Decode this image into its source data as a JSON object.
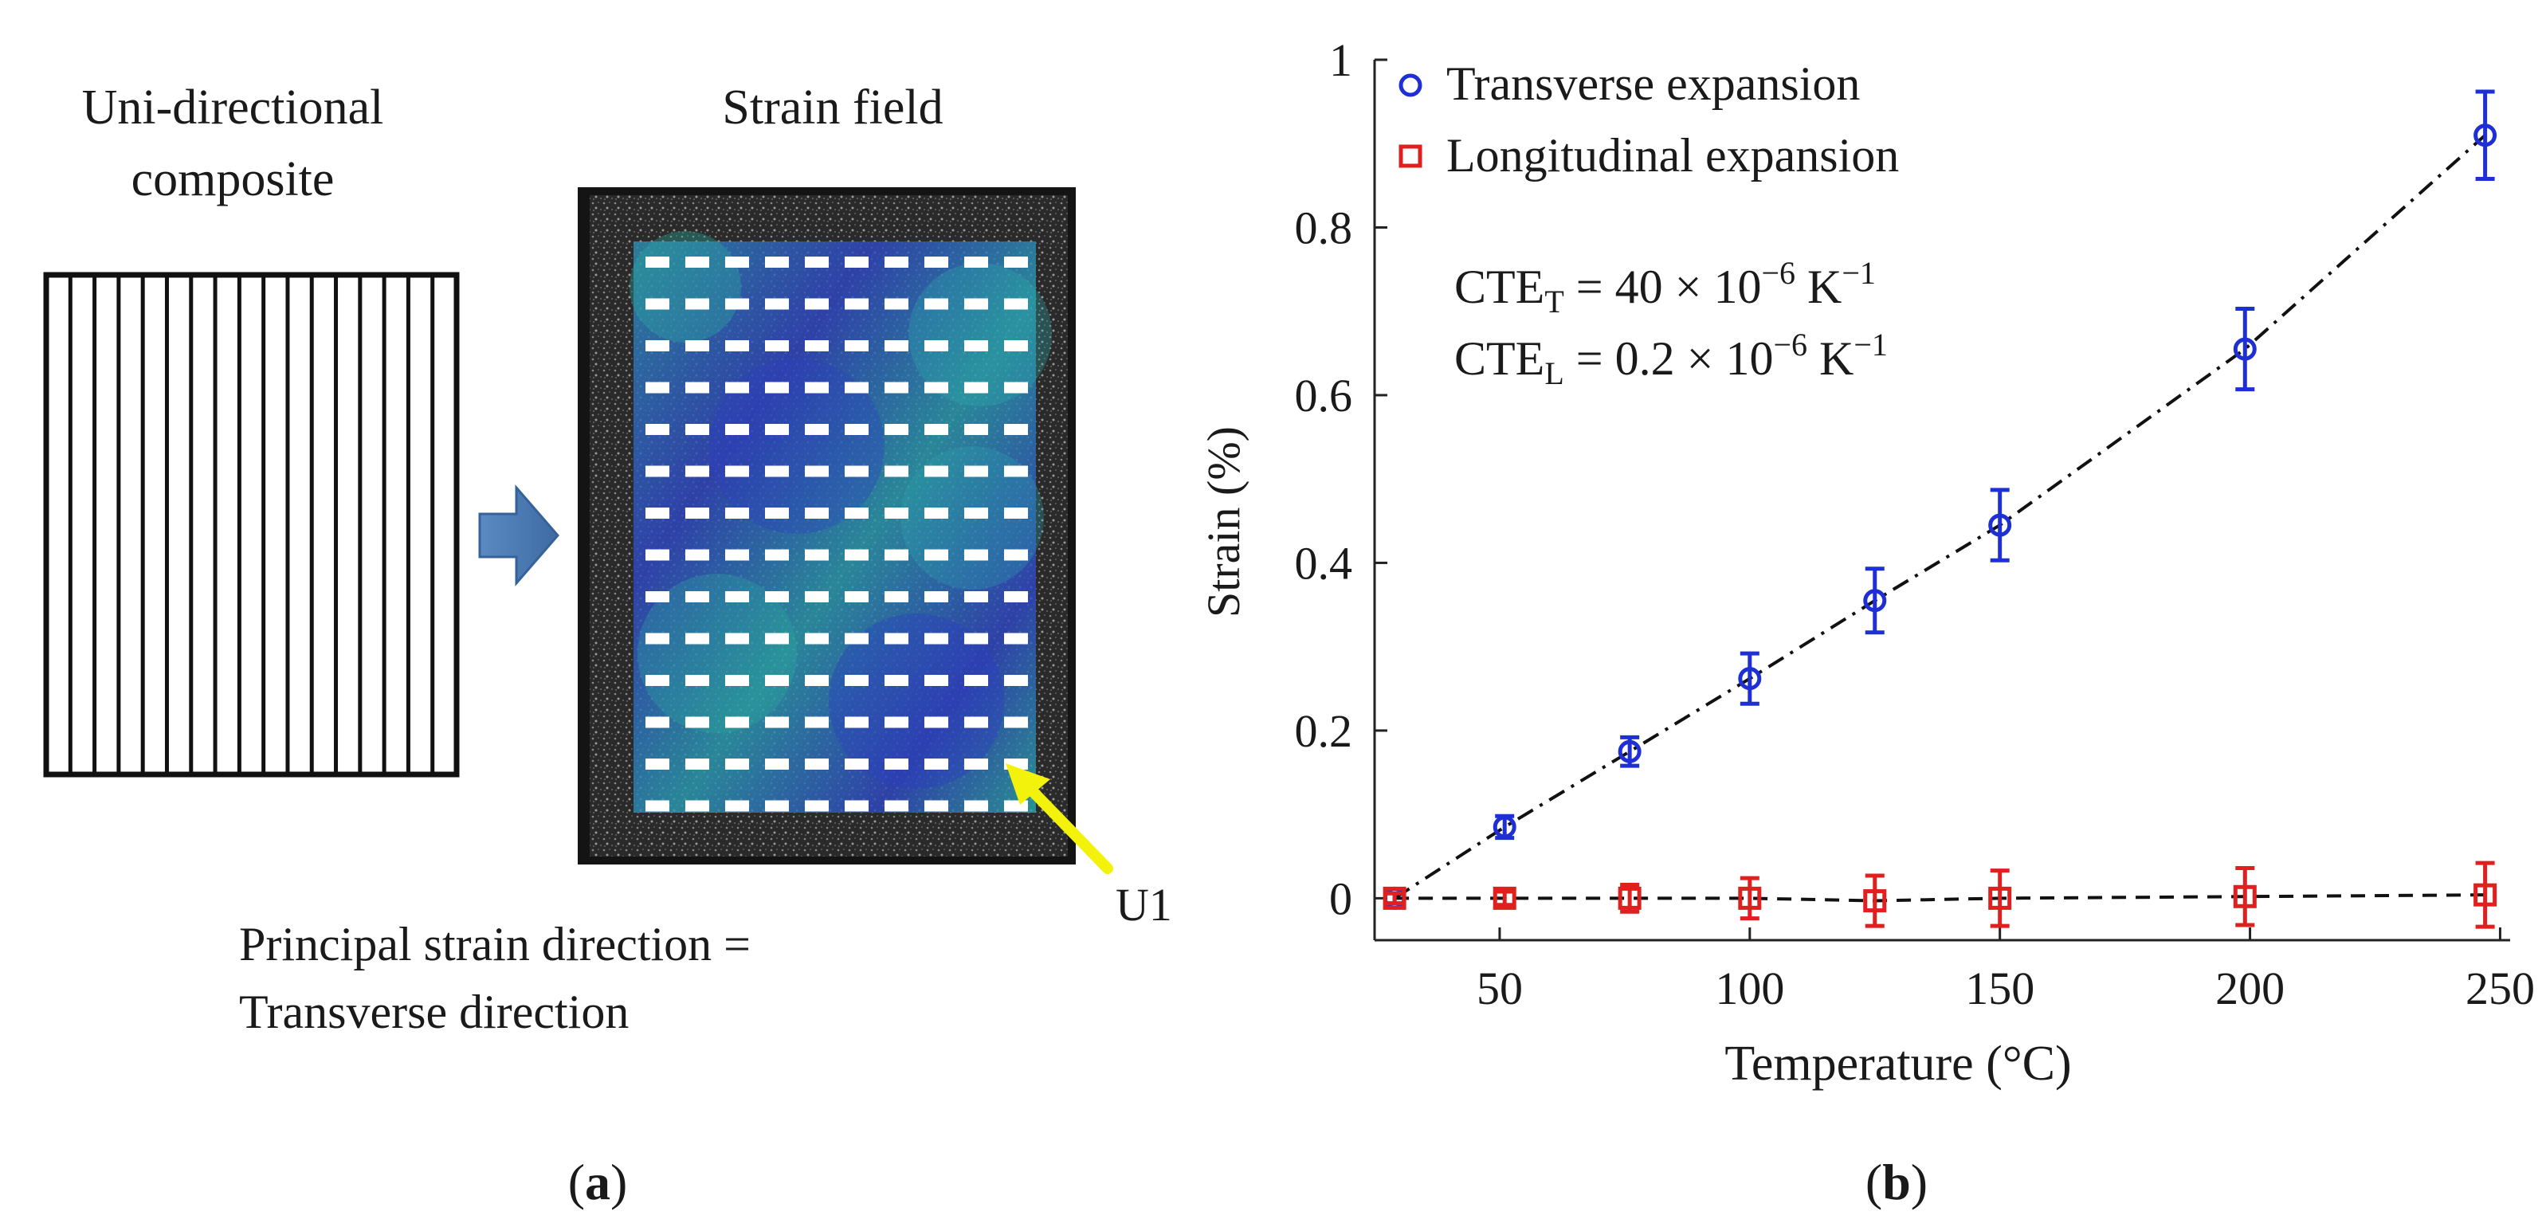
{
  "panel_a": {
    "composite_label_line1": "Uni-directional",
    "composite_label_line2": "composite",
    "strain_field_label": "Strain field",
    "arrow_label": "U1",
    "caption_line1": "Principal strain direction =",
    "caption_line2": "Transverse direction",
    "panel_letter": "a",
    "colors": {
      "arrow_blue": "#4a78b0",
      "pointer_yellow": "#f2f20a",
      "field_blue": "#2f46c2",
      "field_teal": "#2aa6a6"
    }
  },
  "panel_b": {
    "panel_letter": "b",
    "cte_t_prefix": "CTE",
    "cte_t_sub": "T",
    "cte_t_value": " = 40 × 10",
    "cte_t_exp": "−6",
    "cte_t_unit": "K",
    "cte_t_unit_exp": "−1",
    "cte_l_prefix": "CTE",
    "cte_l_sub": "L",
    "cte_l_value": " = 0.2 × 10",
    "cte_l_exp": "−6",
    "cte_l_unit": "K",
    "cte_l_unit_exp": "−1"
  },
  "chart_data": {
    "type": "scatter",
    "title": "",
    "xlabel": "Temperature (°C)",
    "ylabel": "Strain (%)",
    "xlim": [
      25,
      252
    ],
    "ylim": [
      -0.05,
      1.0
    ],
    "xticks": [
      50,
      100,
      150,
      200,
      250
    ],
    "xtick_labels": [
      "50",
      "100",
      "150",
      "200",
      "250"
    ],
    "yticks": [
      0,
      0.2,
      0.4,
      0.6,
      0.8,
      1
    ],
    "ytick_labels": [
      "0",
      "0.2",
      "0.4",
      "0.6",
      "0.8",
      "1"
    ],
    "grid": false,
    "legend_position": "top-left",
    "series": [
      {
        "name": "Transverse expansion",
        "marker": "circle",
        "color": "#1f2fd6",
        "fit_line": "dash-dot",
        "x": [
          29,
          51,
          76,
          100,
          125,
          150,
          199,
          247
        ],
        "y": [
          0.0,
          0.085,
          0.175,
          0.262,
          0.355,
          0.445,
          0.655,
          0.91
        ],
        "err": [
          0.006,
          0.013,
          0.017,
          0.03,
          0.038,
          0.042,
          0.048,
          0.052
        ]
      },
      {
        "name": "Longitudinal expansion",
        "marker": "square",
        "color": "#e01f1f",
        "fit_line": "dashed",
        "x": [
          29,
          51,
          76,
          100,
          125,
          150,
          199,
          247
        ],
        "y": [
          0.0,
          0.0,
          0.0,
          0.0,
          -0.003,
          0.0,
          0.002,
          0.004
        ],
        "err": [
          0.006,
          0.008,
          0.016,
          0.024,
          0.03,
          0.033,
          0.034,
          0.038
        ]
      }
    ]
  }
}
